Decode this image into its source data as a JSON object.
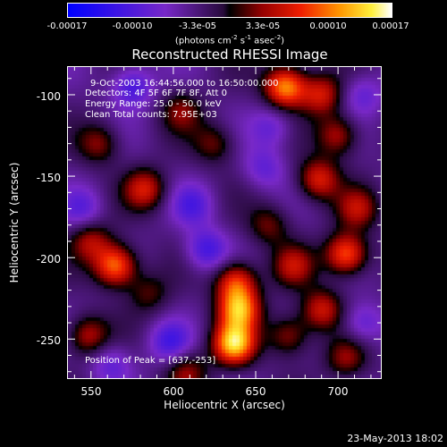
{
  "chart_data": {
    "type": "heatmap",
    "title": "Reconstructed RHESSI Image",
    "xlabel": "Heliocentric X (arcsec)",
    "ylabel": "Heliocentric Y (arcsec)",
    "xlim": [
      536,
      726
    ],
    "ylim": [
      -274,
      -83
    ],
    "x_ticks": [
      550,
      600,
      650,
      700
    ],
    "y_ticks": [
      -100,
      -150,
      -200,
      -250
    ],
    "colorbar": {
      "tick_labels": [
        "-0.00017",
        "-0.00010",
        "-3.3e-05",
        "3.3e-05",
        "0.00010",
        "0.00017"
      ],
      "range": [
        -0.00017,
        0.00017
      ],
      "units_text": "(photons cm",
      "units_sup1": "-2",
      "units_mid": " s",
      "units_sup2": "-1",
      "units_tail": " asec",
      "units_sup3": "-2",
      "units_close": ")"
    },
    "annotations": {
      "time_range": "9-Oct-2003 16:44:56.000 to 16:50:00.000",
      "detectors": "Detectors: 4F 5F 6F 7F 8F, Att 0",
      "energy": "Energy Range: 25.0 - 50.0 keV",
      "clean": "Clean     Total counts: 7.95E+03",
      "peak": "Position of Peak = [637,-253]"
    },
    "sources": [
      {
        "x": 637,
        "y": -253,
        "v": 1.0
      },
      {
        "x": 640,
        "y": -232,
        "v": 0.85
      },
      {
        "x": 638,
        "y": -215,
        "v": 0.7
      },
      {
        "x": 668,
        "y": -95,
        "v": 0.9
      },
      {
        "x": 690,
        "y": -100,
        "v": 0.55
      },
      {
        "x": 583,
        "y": -158,
        "v": 0.55
      },
      {
        "x": 565,
        "y": -205,
        "v": 0.85
      },
      {
        "x": 550,
        "y": -190,
        "v": 0.45
      },
      {
        "x": 548,
        "y": -248,
        "v": 0.5
      },
      {
        "x": 555,
        "y": -130,
        "v": 0.4
      },
      {
        "x": 605,
        "y": -110,
        "v": 0.35
      },
      {
        "x": 625,
        "y": -130,
        "v": 0.35
      },
      {
        "x": 688,
        "y": -152,
        "v": 0.6
      },
      {
        "x": 700,
        "y": -125,
        "v": 0.5
      },
      {
        "x": 712,
        "y": -170,
        "v": 0.45
      },
      {
        "x": 705,
        "y": -198,
        "v": 0.8
      },
      {
        "x": 673,
        "y": -205,
        "v": 0.45
      },
      {
        "x": 658,
        "y": -180,
        "v": 0.35
      },
      {
        "x": 690,
        "y": -232,
        "v": 0.55
      },
      {
        "x": 705,
        "y": -262,
        "v": 0.4
      },
      {
        "x": 670,
        "y": -248,
        "v": 0.45
      },
      {
        "x": 608,
        "y": -270,
        "v": 0.4
      },
      {
        "x": 585,
        "y": -222,
        "v": 0.3
      },
      {
        "x": 575,
        "y": -95,
        "v": -0.45
      },
      {
        "x": 612,
        "y": -168,
        "v": -0.35
      },
      {
        "x": 620,
        "y": -195,
        "v": -0.45
      },
      {
        "x": 598,
        "y": -252,
        "v": -0.4
      },
      {
        "x": 562,
        "y": -265,
        "v": -0.3
      },
      {
        "x": 655,
        "y": -145,
        "v": -0.3
      },
      {
        "x": 715,
        "y": -100,
        "v": -0.3
      },
      {
        "x": 715,
        "y": -240,
        "v": -0.35
      },
      {
        "x": 545,
        "y": -170,
        "v": -0.3
      },
      {
        "x": 660,
        "y": -120,
        "v": -0.3
      }
    ],
    "source_width_arcsec": 9
  },
  "timestamp": "23-May-2013 18:02"
}
